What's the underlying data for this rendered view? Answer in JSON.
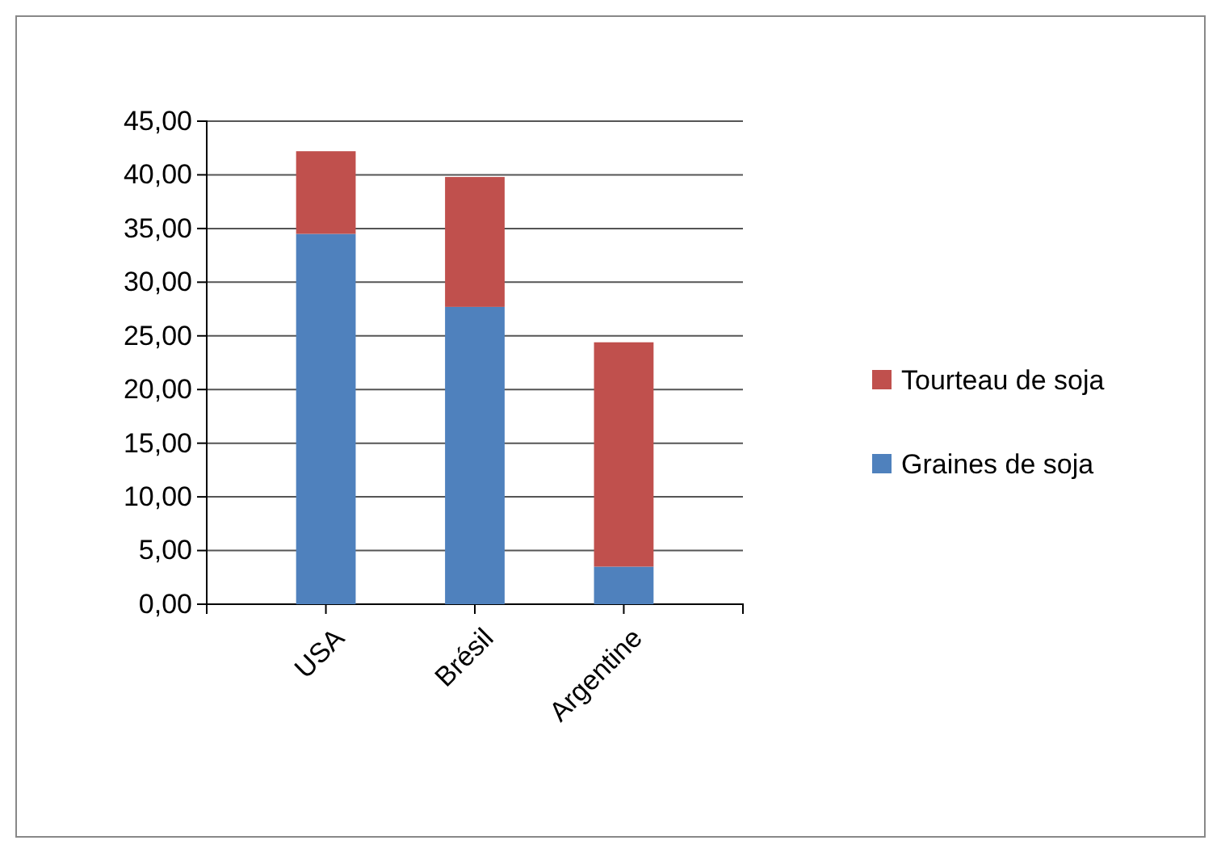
{
  "chart_data": {
    "type": "bar",
    "stacked": true,
    "categories": [
      "USA",
      "Brésil",
      "Argentine"
    ],
    "series": [
      {
        "name": "Graines de soja",
        "color": "#4f81bd",
        "values": [
          34.5,
          27.7,
          3.5
        ]
      },
      {
        "name": "Tourteau de soja",
        "color": "#c0504d",
        "values": [
          7.7,
          12.1,
          20.9
        ]
      }
    ],
    "ylim": [
      0,
      45
    ],
    "yticks": [
      {
        "value": 0,
        "label": "0,00"
      },
      {
        "value": 5,
        "label": "5,00"
      },
      {
        "value": 10,
        "label": "10,00"
      },
      {
        "value": 15,
        "label": "15,00"
      },
      {
        "value": 20,
        "label": "20,00"
      },
      {
        "value": 25,
        "label": "25,00"
      },
      {
        "value": 30,
        "label": "30,00"
      },
      {
        "value": 35,
        "label": "35,00"
      },
      {
        "value": 40,
        "label": "40,00"
      },
      {
        "value": 45,
        "label": "45,00"
      }
    ],
    "grid": "y",
    "legend": "right"
  }
}
